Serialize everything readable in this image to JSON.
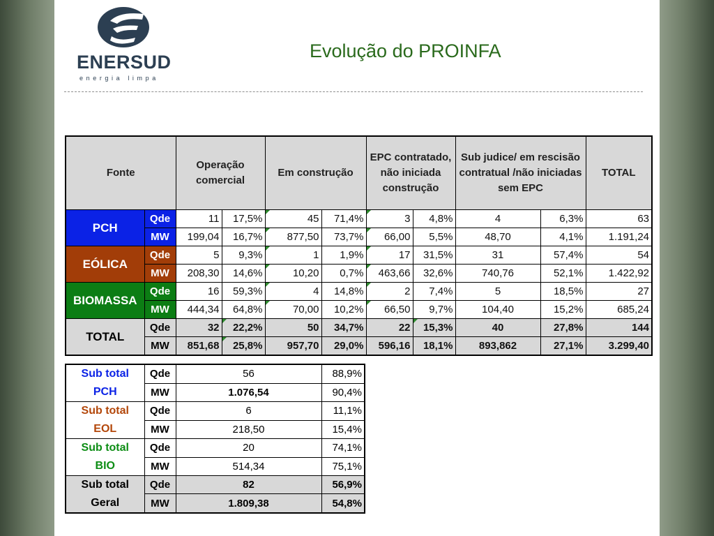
{
  "logo": {
    "brand": "ENERSUD",
    "tagline": "energia limpa"
  },
  "title": "Evolução do PROINFA",
  "colors": {
    "pch": "#0b22e6",
    "eolica": "#a23d08",
    "biomassa": "#0c7d14",
    "title": "#2a6a1c",
    "header_bg": "#d8d8d8"
  },
  "table": {
    "headers": {
      "fonte": "Fonte",
      "operacao": "Operação comercial",
      "construcao": "Em construção",
      "epc": "EPC contratado, não iniciada construção",
      "subjudice": "Sub judice/ em rescisão contratual /não iniciadas sem EPC",
      "total": "TOTAL"
    },
    "units": {
      "qde": "Qde",
      "mw": "MW"
    },
    "rows": [
      {
        "name": "PCH",
        "qde": [
          "11",
          "17,5%",
          "45",
          "71,4%",
          "3",
          "4,8%",
          "4",
          "6,3%",
          "63"
        ],
        "mw": [
          "199,04",
          "16,7%",
          "877,50",
          "73,7%",
          "66,00",
          "5,5%",
          "48,70",
          "4,1%",
          "1.191,24"
        ]
      },
      {
        "name": "EÓLICA",
        "qde": [
          "5",
          "9,3%",
          "1",
          "1,9%",
          "17",
          "31,5%",
          "31",
          "57,4%",
          "54"
        ],
        "mw": [
          "208,30",
          "14,6%",
          "10,20",
          "0,7%",
          "463,66",
          "32,6%",
          "740,76",
          "52,1%",
          "1.422,92"
        ]
      },
      {
        "name": "BIOMASSA",
        "qde": [
          "16",
          "59,3%",
          "4",
          "14,8%",
          "2",
          "7,4%",
          "5",
          "18,5%",
          "27"
        ],
        "mw": [
          "444,34",
          "64,8%",
          "70,00",
          "10,2%",
          "66,50",
          "9,7%",
          "104,40",
          "15,2%",
          "685,24"
        ]
      },
      {
        "name": "TOTAL",
        "qde": [
          "32",
          "22,2%",
          "50",
          "34,7%",
          "22",
          "15,3%",
          "40",
          "27,8%",
          "144"
        ],
        "mw": [
          "851,68",
          "25,8%",
          "957,70",
          "29,0%",
          "596,16",
          "18,1%",
          "893,862",
          "27,1%",
          "3.299,40"
        ]
      }
    ]
  },
  "subtotals": [
    {
      "label1": "Sub total",
      "label2": "PCH",
      "qde": "56",
      "qde_pct": "88,9%",
      "mw": "1.076,54",
      "mw_pct": "90,4%"
    },
    {
      "label1": "Sub total",
      "label2": "EOL",
      "qde": "6",
      "qde_pct": "11,1%",
      "mw": "218,50",
      "mw_pct": "15,4%"
    },
    {
      "label1": "Sub total",
      "label2": "BIO",
      "qde": "20",
      "qde_pct": "74,1%",
      "mw": "514,34",
      "mw_pct": "75,1%"
    },
    {
      "label1": "Sub total",
      "label2": "Geral",
      "qde": "82",
      "qde_pct": "56,9%",
      "mw": "1.809,38",
      "mw_pct": "54,8%"
    }
  ]
}
